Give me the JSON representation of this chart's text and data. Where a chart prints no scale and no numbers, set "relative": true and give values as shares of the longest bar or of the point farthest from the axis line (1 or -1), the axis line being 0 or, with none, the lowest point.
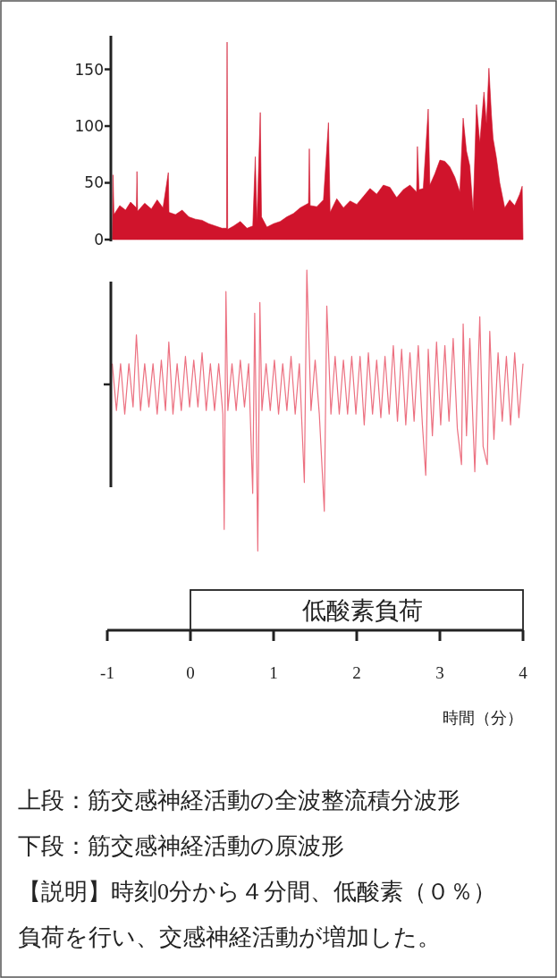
{
  "chart_data": [
    {
      "type": "area",
      "color": "#d0142c",
      "xlim": [
        -1,
        4
      ],
      "ylim": [
        0,
        178
      ],
      "yticks": [
        0,
        50,
        100,
        150
      ],
      "tick_labels": "y",
      "x": [
        -0.94,
        -0.93,
        -0.92,
        -0.85,
        -0.78,
        -0.72,
        -0.65,
        -0.643,
        -0.635,
        -0.55,
        -0.47,
        -0.4,
        -0.33,
        -0.266,
        -0.258,
        -0.18,
        -0.1,
        -0.02,
        0.06,
        0.14,
        0.22,
        0.3,
        0.38,
        0.435,
        0.441,
        0.448,
        0.52,
        0.6,
        0.68,
        0.75,
        0.78,
        0.8,
        0.84,
        0.855,
        0.92,
        1.0,
        1.08,
        1.16,
        1.24,
        1.32,
        1.42,
        1.43,
        1.44,
        1.52,
        1.6,
        1.66,
        1.68,
        1.76,
        1.84,
        1.92,
        2.0,
        2.08,
        2.16,
        2.24,
        2.32,
        2.4,
        2.48,
        2.56,
        2.64,
        2.72,
        2.73,
        2.75,
        2.8,
        2.86,
        2.88,
        2.94,
        3.0,
        3.06,
        3.12,
        3.18,
        3.24,
        3.28,
        3.32,
        3.36,
        3.4,
        3.44,
        3.48,
        3.53,
        3.56,
        3.59,
        3.62,
        3.64,
        3.68,
        3.72,
        3.78,
        3.84,
        3.9,
        3.96,
        3.99,
        4.0
      ],
      "values": [
        0,
        57,
        22,
        30,
        26,
        33,
        28,
        60,
        25,
        32,
        27,
        35,
        28,
        59,
        24,
        22,
        26,
        20,
        18,
        17,
        14,
        12,
        10,
        10,
        174,
        9,
        12,
        16,
        10,
        12,
        73,
        15,
        112,
        20,
        11,
        14,
        16,
        20,
        23,
        28,
        32,
        80,
        30,
        29,
        35,
        103,
        24,
        36,
        28,
        34,
        31,
        38,
        45,
        40,
        48,
        46,
        37,
        44,
        48,
        42,
        82,
        44,
        45,
        115,
        48,
        58,
        70,
        69,
        64,
        55,
        42,
        107,
        78,
        65,
        25,
        119,
        85,
        130,
        102,
        151,
        110,
        89,
        72,
        50,
        28,
        35,
        30,
        40,
        47,
        0
      ]
    },
    {
      "type": "line",
      "relative": true,
      "color": "#ec7080",
      "xlim": [
        -1,
        4
      ],
      "xticks": [
        -1,
        0,
        1,
        2,
        3,
        4
      ],
      "tick_labels": "x",
      "xlabel": "時間（分）",
      "bands": [
        {
          "axis": "x",
          "from": 0,
          "to": 4,
          "label": "低酸素負荷",
          "color": "#ffffff"
        }
      ],
      "annotations": [
        "上段：筋交感神経活動の全波整流積分波形",
        "下段：筋交感神経活動の原波形",
        "【説明】時刻0分から４分間、低酸素（０％）",
        "負荷を行い、交感神経活動が増加した。"
      ],
      "x": [
        -0.94,
        -0.89,
        -0.84,
        -0.79,
        -0.74,
        -0.69,
        -0.65,
        -0.6,
        -0.55,
        -0.5,
        -0.45,
        -0.4,
        -0.35,
        -0.3,
        -0.26,
        -0.21,
        -0.16,
        -0.11,
        -0.06,
        -0.01,
        0.04,
        0.09,
        0.14,
        0.19,
        0.24,
        0.29,
        0.34,
        0.39,
        0.406,
        0.427,
        0.45,
        0.5,
        0.55,
        0.6,
        0.65,
        0.7,
        0.749,
        0.773,
        0.79,
        0.81,
        0.835,
        0.86,
        0.91,
        0.96,
        1.01,
        1.06,
        1.11,
        1.16,
        1.21,
        1.26,
        1.31,
        1.37,
        1.4,
        1.45,
        1.5,
        1.55,
        1.61,
        1.64,
        1.69,
        1.74,
        1.79,
        1.84,
        1.89,
        1.94,
        1.99,
        2.04,
        2.09,
        2.14,
        2.19,
        2.24,
        2.29,
        2.34,
        2.39,
        2.44,
        2.49,
        2.54,
        2.59,
        2.64,
        2.69,
        2.74,
        2.79,
        2.83,
        2.86,
        2.91,
        2.96,
        3.01,
        3.06,
        3.11,
        3.16,
        3.21,
        3.26,
        3.28,
        3.32,
        3.36,
        3.42,
        3.48,
        3.52,
        3.57,
        3.6,
        3.65,
        3.7,
        3.75,
        3.8,
        3.85,
        3.9,
        3.95,
        4.0
      ],
      "values": [
        0.74,
        0.61,
        0.74,
        0.6,
        0.74,
        0.62,
        0.82,
        0.61,
        0.74,
        0.62,
        0.74,
        0.6,
        0.75,
        0.61,
        0.8,
        0.6,
        0.74,
        0.61,
        0.76,
        0.62,
        0.75,
        0.62,
        0.77,
        0.61,
        0.74,
        0.61,
        0.74,
        0.6,
        0.28,
        0.94,
        0.61,
        0.74,
        0.61,
        0.75,
        0.62,
        0.74,
        0.38,
        0.88,
        0.6,
        0.22,
        0.91,
        0.61,
        0.74,
        0.61,
        0.75,
        0.6,
        0.74,
        0.61,
        0.76,
        0.6,
        0.74,
        0.41,
        1,
        0.61,
        0.75,
        0.6,
        0.33,
        0.9,
        0.6,
        0.76,
        0.6,
        0.75,
        0.6,
        0.76,
        0.6,
        0.76,
        0.57,
        0.77,
        0.6,
        0.75,
        0.59,
        0.76,
        0.6,
        0.79,
        0.58,
        0.78,
        0.57,
        0.77,
        0.58,
        0.79,
        0.57,
        0.43,
        0.78,
        0.54,
        0.8,
        0.57,
        0.79,
        0.58,
        0.81,
        0.56,
        0.46,
        0.85,
        0.54,
        0.81,
        0.44,
        0.87,
        0.51,
        0.46,
        0.83,
        0.53,
        0.77,
        0.58,
        0.76,
        0.57,
        0.77,
        0.59,
        0.74
      ]
    }
  ]
}
